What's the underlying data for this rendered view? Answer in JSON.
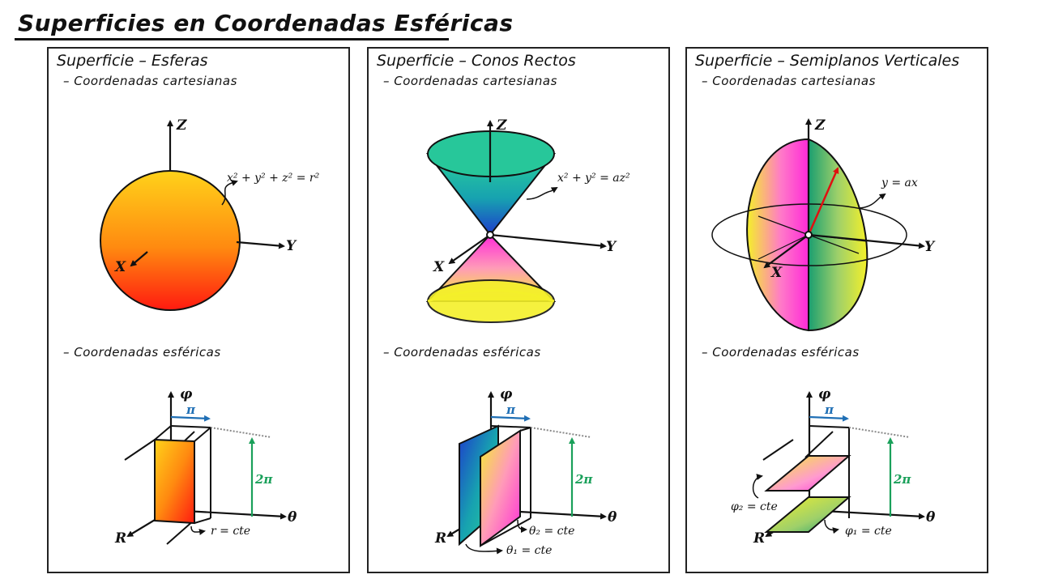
{
  "title": "Superficies en Coordenadas Esféricas",
  "panels": [
    {
      "heading": "Superficie – Esferas",
      "cartesian_label": "– Coordenadas cartesianas",
      "spherical_label": "– Coordenadas esféricas",
      "equation": "x² + y² + z² = r²",
      "sph_equation": "r = cte"
    },
    {
      "heading": "Superficie – Conos Rectos",
      "cartesian_label": "– Coordenadas cartesianas",
      "spherical_label": "– Coordenadas esféricas",
      "equation": "x² + y² = az²",
      "sph_equation_1": "θ₂ = cte",
      "sph_equation_2": "θ₁ = cte"
    },
    {
      "heading": "Superficie – Semiplanos Verticales",
      "cartesian_label": "– Coordenadas cartesianas",
      "spherical_label": "– Coordenadas esféricas",
      "equation": "y = ax",
      "sph_equation_1": "φ₂ = cte",
      "sph_equation_2": "φ₁ = cte"
    }
  ],
  "axes": {
    "z": "Z",
    "y": "Y",
    "x": "X",
    "phi": "φ",
    "theta": "θ",
    "r": "R",
    "pi": "π",
    "two_pi": "2π"
  },
  "colors": {
    "pi_arrow": "#1f6fb5",
    "two_pi_arrow": "#1aa05a",
    "red_arrow": "#e01010"
  }
}
